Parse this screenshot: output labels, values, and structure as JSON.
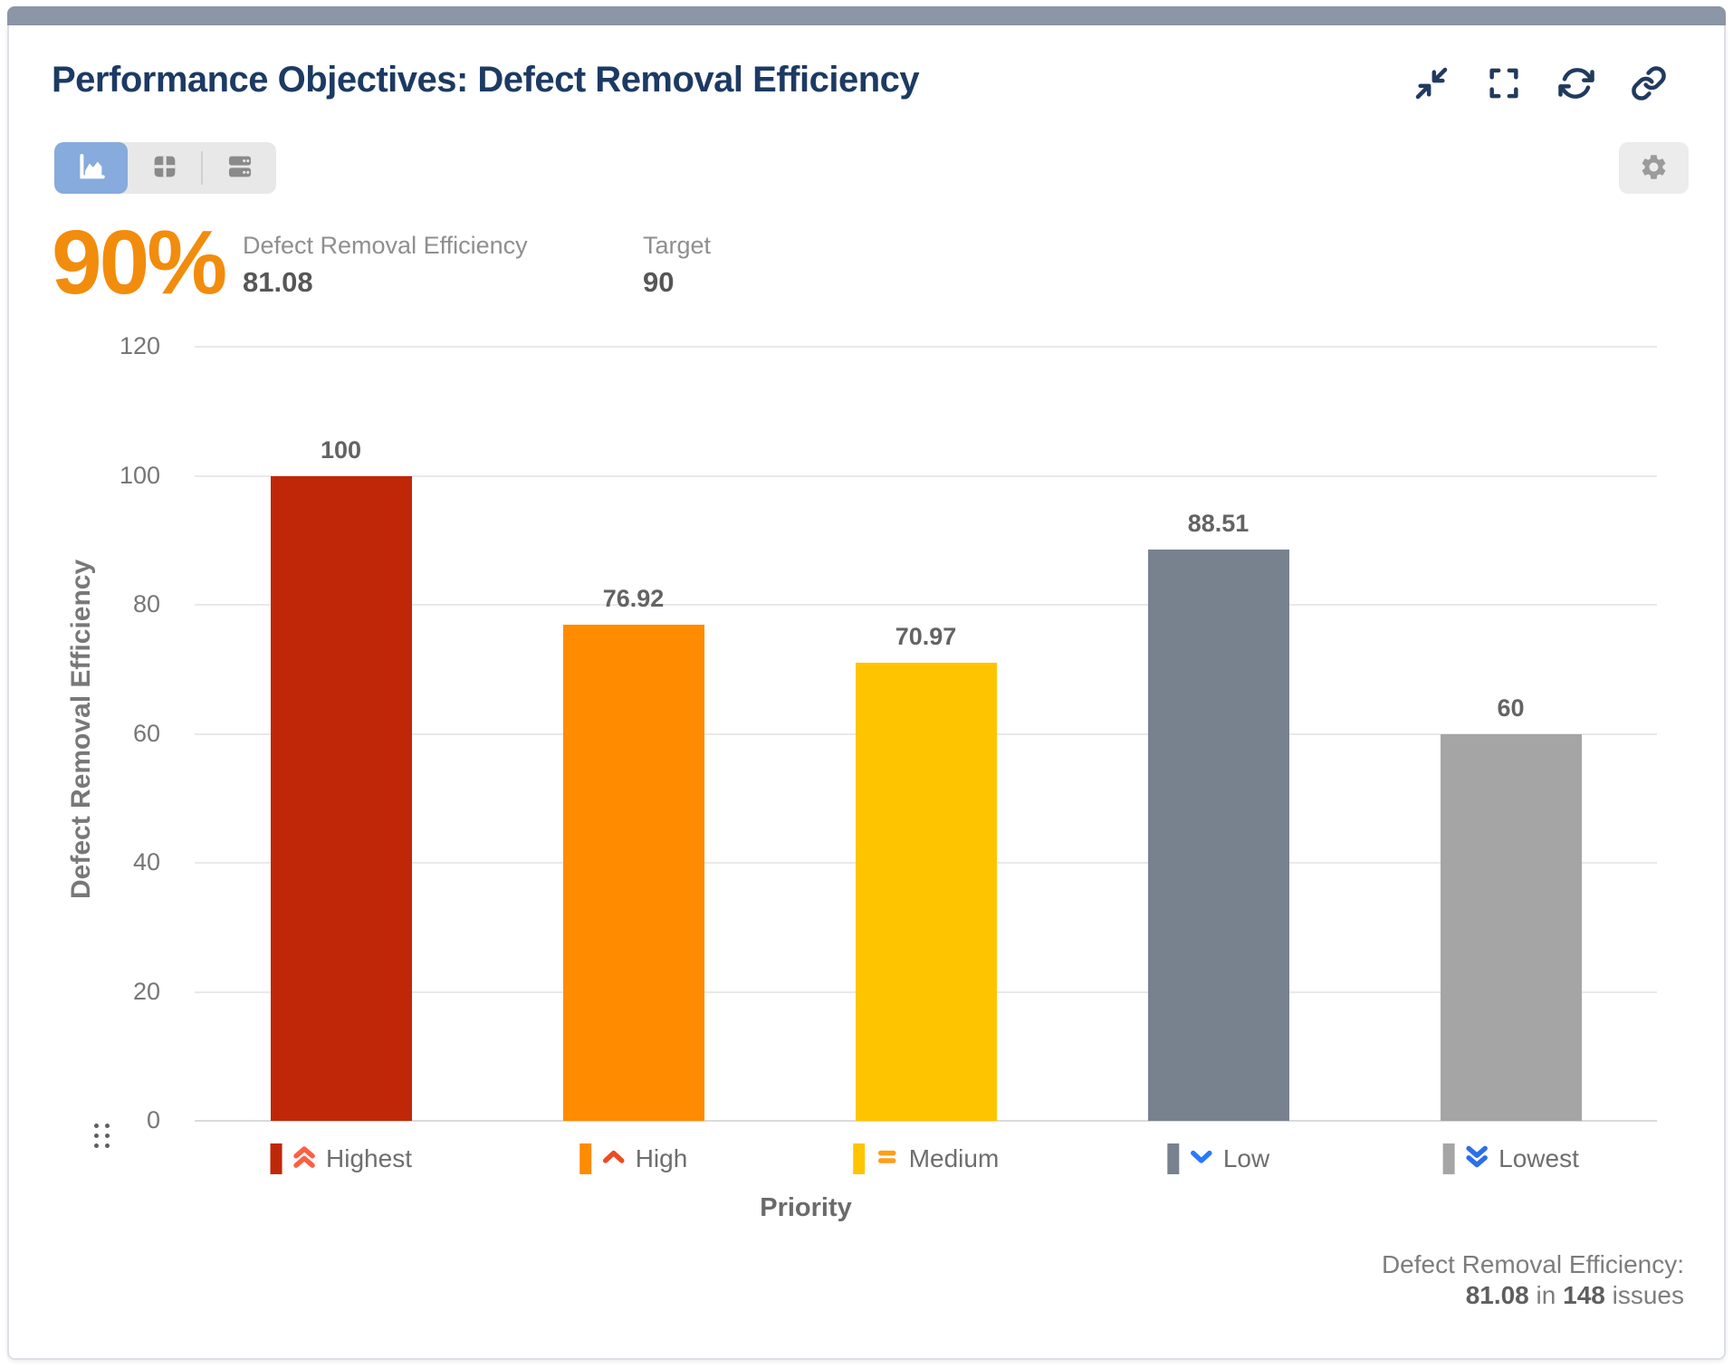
{
  "header": {
    "title": "Performance Objectives: Defect Removal Efficiency",
    "actions": [
      "collapse",
      "fullscreen",
      "refresh",
      "link"
    ]
  },
  "toolbar": {
    "views": [
      "chart-view",
      "table-view",
      "list-view"
    ],
    "selected_view": "chart-view",
    "settings": "settings"
  },
  "kpi": {
    "percent": "90%",
    "metric_label": "Defect Removal Efficiency",
    "metric_value": "81.08",
    "target_label": "Target",
    "target_value": "90"
  },
  "chart_data": {
    "type": "bar",
    "title": "",
    "xlabel": "Priority",
    "ylabel": "Defect Removal Efficiency",
    "ylim": [
      0,
      120
    ],
    "yticks": [
      0,
      20,
      40,
      60,
      80,
      100,
      120
    ],
    "grid": true,
    "categories": [
      "Highest",
      "High",
      "Medium",
      "Low",
      "Lowest"
    ],
    "values": [
      100,
      76.92,
      70.97,
      88.51,
      60
    ],
    "value_labels": [
      "100",
      "76.92",
      "70.97",
      "88.51",
      "60"
    ],
    "bar_colors": [
      "#c02708",
      "#ff8b00",
      "#ffc400",
      "#78828f",
      "#a5a5a5"
    ],
    "priority_icons": [
      {
        "name": "priority-highest-icon",
        "type": "chevron-double-up",
        "color": "#ff5e40"
      },
      {
        "name": "priority-high-icon",
        "type": "chevron-up",
        "color": "#ee4a23"
      },
      {
        "name": "priority-medium-icon",
        "type": "equal",
        "color": "#ff9d1c"
      },
      {
        "name": "priority-low-icon",
        "type": "chevron-down",
        "color": "#2779ff"
      },
      {
        "name": "priority-lowest-icon",
        "type": "chevron-double-down",
        "color": "#2c6fe8"
      }
    ]
  },
  "footer": {
    "label": "Defect Removal Efficiency:",
    "value": "81.08",
    "connector": "in",
    "count": "148",
    "suffix": "issues"
  },
  "colors": {
    "accent_orange": "#f28c0d",
    "title_navy": "#1c3a63",
    "top_strip": "#8b96a6",
    "selected_view_bg": "#86abdc",
    "grid_line": "#e9e9e9"
  }
}
